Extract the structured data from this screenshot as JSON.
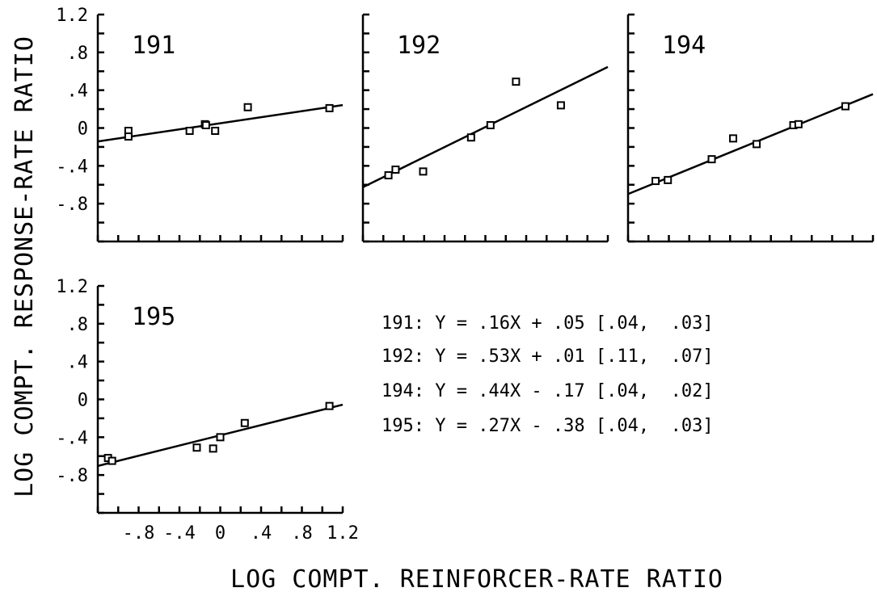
{
  "chart_data": {
    "type": "scatter",
    "xlabel": "LOG COMPT. REINFORCER-RATE RATIO",
    "ylabel": "LOG COMPT. RESPONSE-RATE RATIO",
    "xlim": [
      -1.2,
      1.2
    ],
    "ylim": [
      -1.2,
      1.2
    ],
    "yticks": [
      "1.2",
      ".8",
      ".4",
      "0",
      "-.4",
      "-.8"
    ],
    "xticks": [
      "-.8",
      "-.4",
      "0",
      ".4",
      ".8",
      "1.2"
    ],
    "panels": [
      {
        "label": "191",
        "points": [
          [
            -0.9,
            -0.03
          ],
          [
            -0.9,
            -0.09
          ],
          [
            -0.3,
            -0.03
          ],
          [
            -0.15,
            0.04
          ],
          [
            -0.14,
            0.03
          ],
          [
            -0.05,
            -0.03
          ],
          [
            0.27,
            0.22
          ],
          [
            1.07,
            0.21
          ]
        ],
        "fit": {
          "slope": 0.16,
          "intercept": 0.05
        }
      },
      {
        "label": "192",
        "points": [
          [
            -0.95,
            -0.5
          ],
          [
            -0.88,
            -0.44
          ],
          [
            -0.61,
            -0.46
          ],
          [
            -0.14,
            -0.1
          ],
          [
            0.05,
            0.03
          ],
          [
            0.3,
            0.49
          ],
          [
            0.74,
            0.24
          ]
        ],
        "fit": {
          "slope": 0.53,
          "intercept": 0.01
        }
      },
      {
        "label": "194",
        "points": [
          [
            -0.93,
            -0.56
          ],
          [
            -0.81,
            -0.55
          ],
          [
            -0.38,
            -0.33
          ],
          [
            -0.17,
            -0.11
          ],
          [
            0.06,
            -0.17
          ],
          [
            0.42,
            0.03
          ],
          [
            0.47,
            0.04
          ],
          [
            0.93,
            0.23
          ]
        ],
        "fit": {
          "slope": 0.44,
          "intercept": -0.17
        }
      },
      {
        "label": "195",
        "points": [
          [
            -1.1,
            -0.62
          ],
          [
            -1.06,
            -0.65
          ],
          [
            -0.23,
            -0.51
          ],
          [
            -0.07,
            -0.52
          ],
          [
            0.0,
            -0.4
          ],
          [
            0.24,
            -0.25
          ],
          [
            1.07,
            -0.07
          ]
        ],
        "fit": {
          "slope": 0.27,
          "intercept": -0.38
        }
      }
    ],
    "equations": [
      "191: Y = .16X + .05 [.04,  .03]",
      "192: Y = .53X + .01 [.11,  .07]",
      "194: Y = .44X - .17 [.04,  .02]",
      "195: Y = .27X - .38 [.04,  .03]"
    ]
  }
}
